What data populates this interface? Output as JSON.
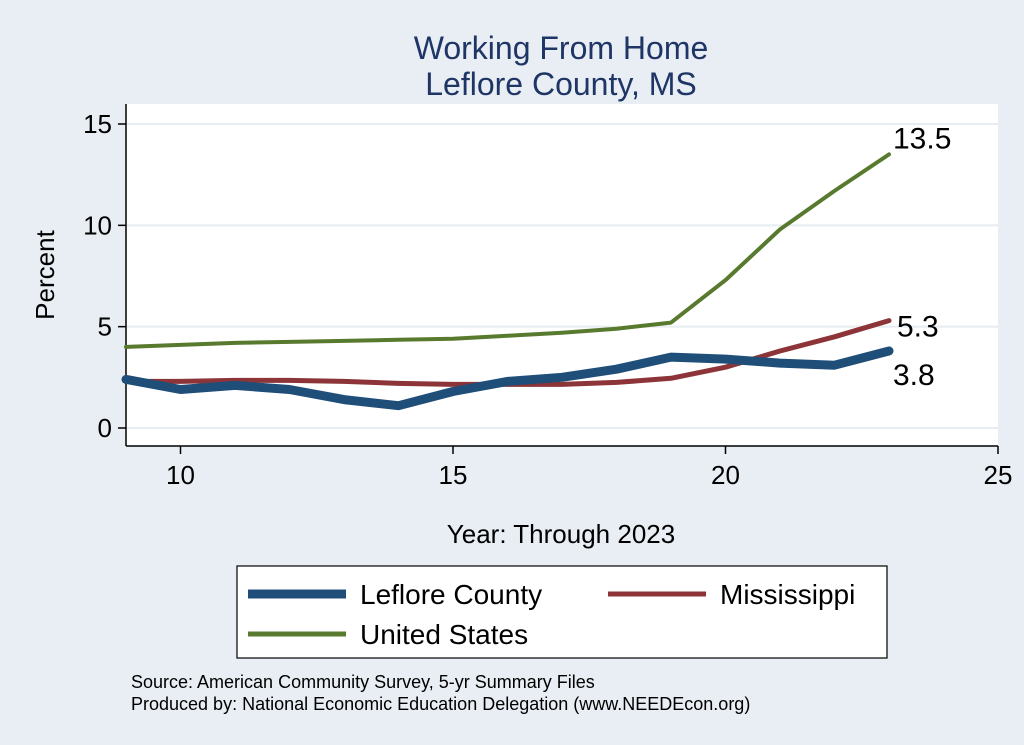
{
  "chart_data": {
    "type": "line",
    "title": "Working From Home",
    "subtitle": "Leflore County, MS",
    "xlabel": "Year: Through 2023",
    "ylabel": "Percent",
    "xlim": [
      9,
      25
    ],
    "ylim": [
      0,
      15
    ],
    "xticks": [
      10,
      15,
      20,
      25
    ],
    "yticks": [
      0,
      5,
      10,
      15
    ],
    "grid": true,
    "legend_position": "bottom",
    "series": [
      {
        "name": "Leflore County",
        "color": "#1f4e79",
        "x": [
          9,
          10,
          11,
          12,
          13,
          14,
          15,
          16,
          17,
          18,
          19,
          20,
          21,
          22,
          23
        ],
        "values": [
          2.4,
          1.9,
          2.1,
          1.9,
          1.4,
          1.1,
          1.8,
          2.3,
          2.5,
          2.9,
          3.5,
          3.4,
          3.2,
          3.1,
          3.8
        ],
        "end_label": "3.8"
      },
      {
        "name": "Mississippi",
        "color": "#8c3438",
        "x": [
          9,
          10,
          11,
          12,
          13,
          14,
          15,
          16,
          17,
          18,
          19,
          20,
          21,
          22,
          23
        ],
        "values": [
          2.3,
          2.3,
          2.35,
          2.35,
          2.3,
          2.2,
          2.15,
          2.15,
          2.15,
          2.25,
          2.45,
          3.0,
          3.8,
          4.5,
          5.3
        ],
        "end_label": "5.3"
      },
      {
        "name": "United States",
        "color": "#587a2e",
        "x": [
          9,
          10,
          11,
          12,
          13,
          14,
          15,
          16,
          17,
          18,
          19,
          20,
          21,
          22,
          23
        ],
        "values": [
          4.0,
          4.1,
          4.2,
          4.25,
          4.3,
          4.35,
          4.4,
          4.55,
          4.7,
          4.9,
          5.2,
          7.3,
          9.8,
          11.7,
          13.5
        ],
        "end_label": "13.5"
      }
    ],
    "source": "Source: American Community Survey, 5-yr Summary Files",
    "credit": "Produced by: National Economic Education Delegation (www.NEEDEcon.org)"
  }
}
